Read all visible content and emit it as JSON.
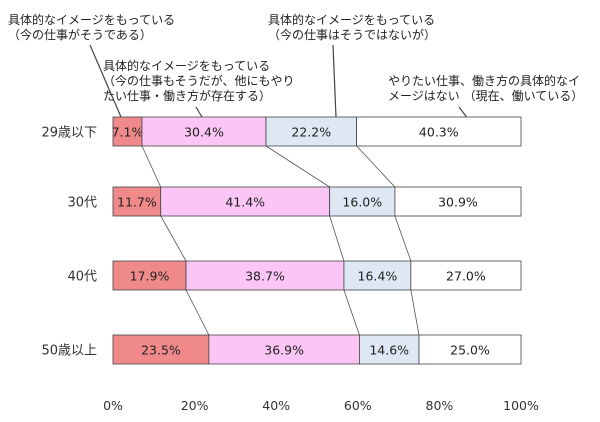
{
  "chart_data": {
    "type": "bar",
    "orientation": "horizontal",
    "stacked": true,
    "percent": true,
    "categories": [
      "29歳以下",
      "30代",
      "40代",
      "50歳以上"
    ],
    "series": [
      {
        "name": "具体的なイメージをもっている\n（今の仕事がそうである）",
        "color": "#f08a8a",
        "values": [
          7.1,
          11.7,
          17.9,
          23.5
        ]
      },
      {
        "name": "具体的なイメージをもっている\n（今の仕事もそうだが、他にもやり\nたい仕事・働き方が存在する）",
        "color": "#fbc6f6",
        "values": [
          30.4,
          41.4,
          38.7,
          36.9
        ]
      },
      {
        "name": "具体的なイメージをもっている\n（今の仕事はそうではないが）",
        "color": "#dde8f4",
        "values": [
          22.2,
          16.0,
          16.4,
          14.6
        ]
      },
      {
        "name": "やりたい仕事、働き方の具体的なイ\nメージはない （現在、働いている）",
        "color": "#ffffff",
        "values": [
          40.3,
          30.9,
          27.0,
          25.0
        ]
      }
    ],
    "xlim": [
      0,
      100
    ],
    "xticks": [
      "0%",
      "20%",
      "40%",
      "60%",
      "80%",
      "100%"
    ],
    "value_suffix": "%",
    "legend_placement": "top (callout annotations)",
    "grid": false
  }
}
